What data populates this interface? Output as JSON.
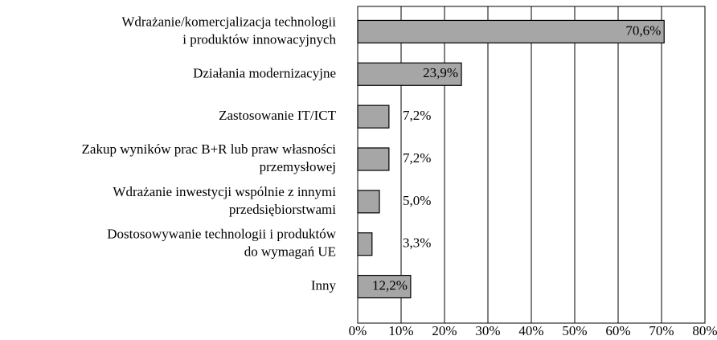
{
  "chart_data": {
    "type": "bar",
    "orientation": "horizontal",
    "categories": [
      "Wdrażanie/komercjalizacja technologii\ni produktów innowacyjnych",
      "Działania modernizacyjne",
      "Zastosowanie IT/ICT",
      "Zakup wyników prac B+R lub praw własności\nprzemysłowej",
      "Wdrażanie inwestycji wspólnie z innymi\nprzedsiębiorstwami",
      "Dostosowywanie technologii i produktów\ndo wymagań UE",
      "Inny"
    ],
    "values": [
      70.6,
      23.9,
      7.2,
      7.2,
      5.0,
      3.3,
      12.2
    ],
    "value_labels": [
      "70,6%",
      "23,9%",
      "7,2%",
      "7,2%",
      "5,0%",
      "3,3%",
      "12,2%"
    ],
    "color": "#a6a6a6",
    "xlim": [
      0,
      80
    ],
    "xticks": [
      {
        "value": 0,
        "label": "0%"
      },
      {
        "value": 10,
        "label": "10%"
      },
      {
        "value": 20,
        "label": "20%"
      },
      {
        "value": 30,
        "label": "30%"
      },
      {
        "value": 40,
        "label": "40%"
      },
      {
        "value": 50,
        "label": "50%"
      },
      {
        "value": 60,
        "label": "60%"
      },
      {
        "value": 70,
        "label": "70%"
      },
      {
        "value": 80,
        "label": "80%"
      }
    ],
    "grid": true
  }
}
